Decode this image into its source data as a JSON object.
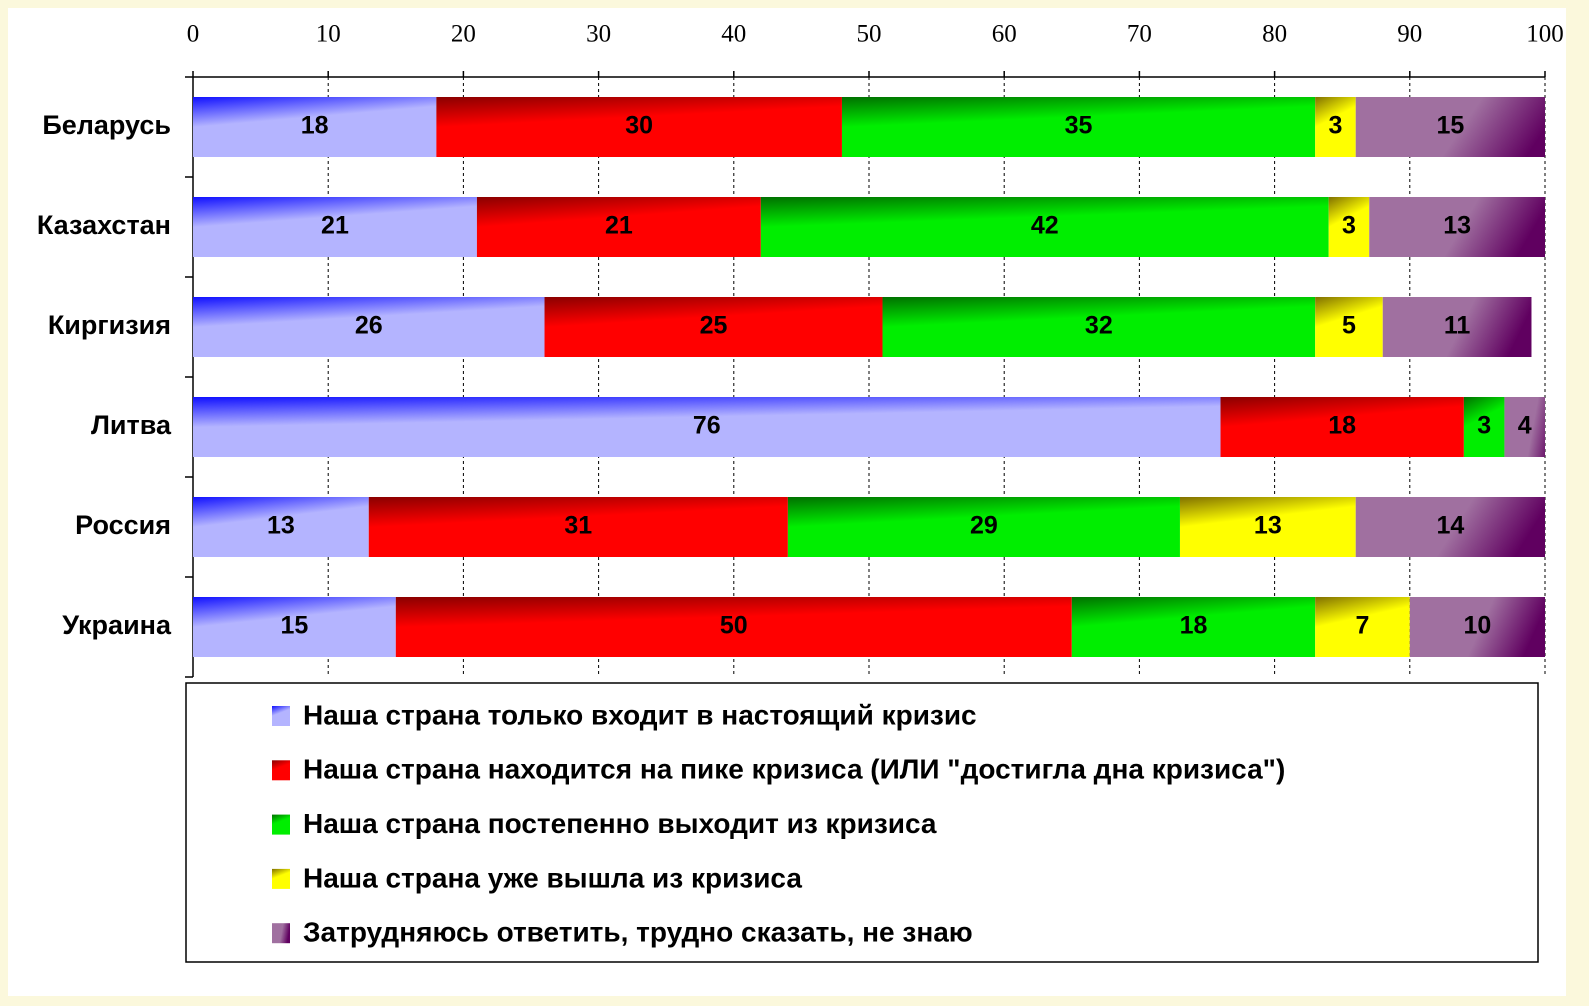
{
  "chart_data": {
    "type": "stacked_bar_horizontal",
    "categories": [
      "Беларусь",
      "Казахстан",
      "Киргизия",
      "Литва",
      "Россия",
      "Украина"
    ],
    "series": [
      {
        "name": "Наша страна только входит в настоящий кризис",
        "color": "#b4b4ff",
        "values": [
          18,
          21,
          26,
          76,
          13,
          15
        ]
      },
      {
        "name": "Наша страна находится на пике кризиса (ИЛИ \"достигла дна кризиса\")",
        "color": "#ff0000",
        "values": [
          30,
          21,
          25,
          18,
          31,
          50
        ]
      },
      {
        "name": "Наша страна постепенно выходит из кризиса",
        "color": "#00ee00",
        "values": [
          35,
          42,
          32,
          3,
          29,
          18
        ]
      },
      {
        "name": "Наша страна уже вышла из кризиса",
        "color": "#ffff00",
        "values": [
          3,
          3,
          5,
          null,
          13,
          7
        ]
      },
      {
        "name": "Затрудняюсь ответить, трудно сказать, не знаю",
        "color": "#a070a0",
        "values": [
          15,
          13,
          11,
          4,
          14,
          10
        ]
      }
    ],
    "xlim": [
      0,
      100
    ],
    "xticks": [
      0,
      10,
      20,
      30,
      40,
      50,
      60,
      70,
      80,
      90,
      100
    ],
    "grid": true
  }
}
